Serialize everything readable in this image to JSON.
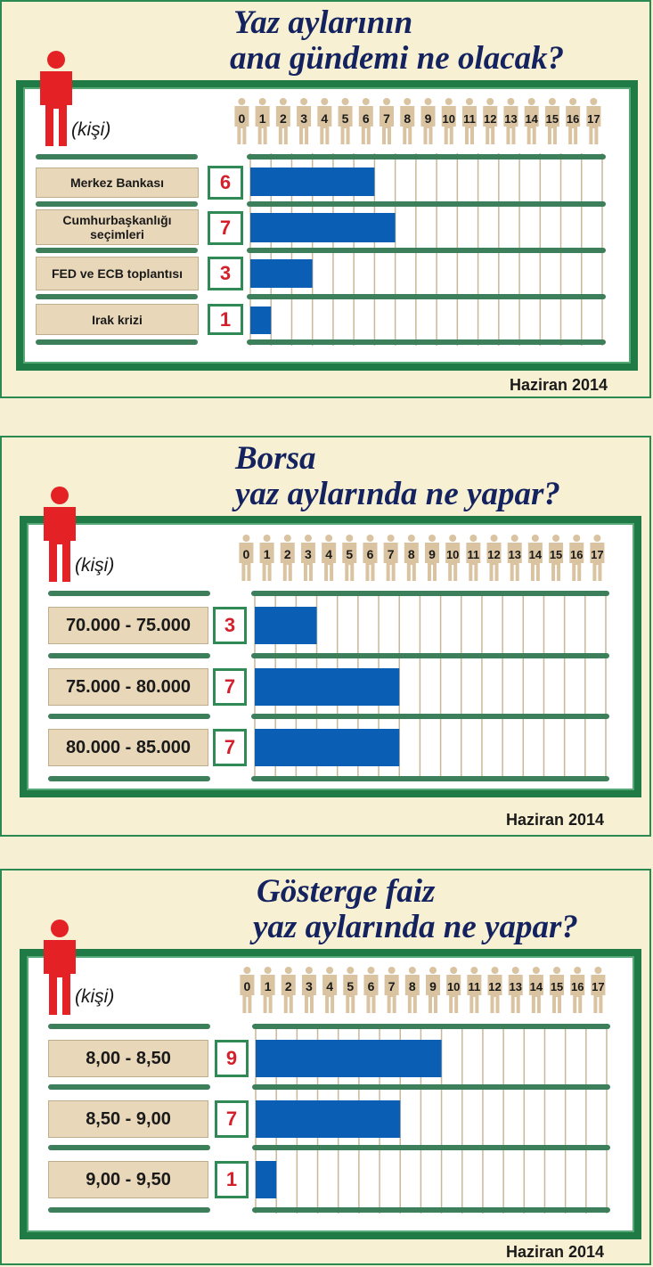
{
  "source": "Haziran 2014",
  "unit_label": "(kişi)",
  "colors": {
    "bar": "#0a5fb4",
    "frame": "#1f7a45",
    "panel_bg": "#f7f0d2",
    "value_text": "#d4202a",
    "title": "#14235f",
    "label_bg": "#e8d7b8",
    "person_red": "#e42226",
    "person_tan": "#d9c3a0"
  },
  "chart_data": [
    {
      "type": "bar",
      "orientation": "horizontal",
      "title": "Yaz aylarının ana gündemi ne olacak?",
      "title_lines": [
        "Yaz aylarının",
        "ana gündemi ne olacak?"
      ],
      "ylabel": "(kişi)",
      "xlim": [
        0,
        17
      ],
      "ticks": [
        "0",
        "1",
        "2",
        "3",
        "4",
        "5",
        "6",
        "7",
        "8",
        "9",
        "10",
        "11",
        "12",
        "13",
        "14",
        "15",
        "16",
        "17"
      ],
      "categories": [
        "Merkez Bankası",
        "Cumhurbaşkanlığı seçimleri",
        "FED ve ECB toplantısı",
        "Irak krizi"
      ],
      "values": [
        6,
        7,
        3,
        1
      ],
      "value_labels": [
        "6",
        "7",
        "3",
        "1"
      ],
      "source": "Haziran 2014"
    },
    {
      "type": "bar",
      "orientation": "horizontal",
      "title": "Borsa yaz aylarında ne yapar?",
      "title_lines": [
        "Borsa",
        "yaz aylarında ne yapar?"
      ],
      "ylabel": "(kişi)",
      "xlim": [
        0,
        17
      ],
      "ticks": [
        "0",
        "1",
        "2",
        "3",
        "4",
        "5",
        "6",
        "7",
        "8",
        "9",
        "10",
        "11",
        "12",
        "13",
        "14",
        "15",
        "16",
        "17"
      ],
      "categories": [
        "70.000 - 75.000",
        "75.000 - 80.000",
        "80.000 - 85.000"
      ],
      "values": [
        3,
        7,
        7
      ],
      "value_labels": [
        "3",
        "7",
        "7"
      ],
      "source": "Haziran 2014"
    },
    {
      "type": "bar",
      "orientation": "horizontal",
      "title": "Gösterge faiz yaz aylarında ne yapar?",
      "title_lines": [
        "Gösterge faiz",
        "yaz aylarında ne yapar?"
      ],
      "ylabel": "(kişi)",
      "xlim": [
        0,
        17
      ],
      "ticks": [
        "0",
        "1",
        "2",
        "3",
        "4",
        "5",
        "6",
        "7",
        "8",
        "9",
        "10",
        "11",
        "12",
        "13",
        "14",
        "15",
        "16",
        "17"
      ],
      "categories": [
        "8,00 - 8,50",
        "8,50 - 9,00",
        "9,00 - 9,50"
      ],
      "values": [
        9,
        7,
        1
      ],
      "value_labels": [
        "9",
        "7",
        "1"
      ],
      "source": "Haziran 2014"
    }
  ]
}
